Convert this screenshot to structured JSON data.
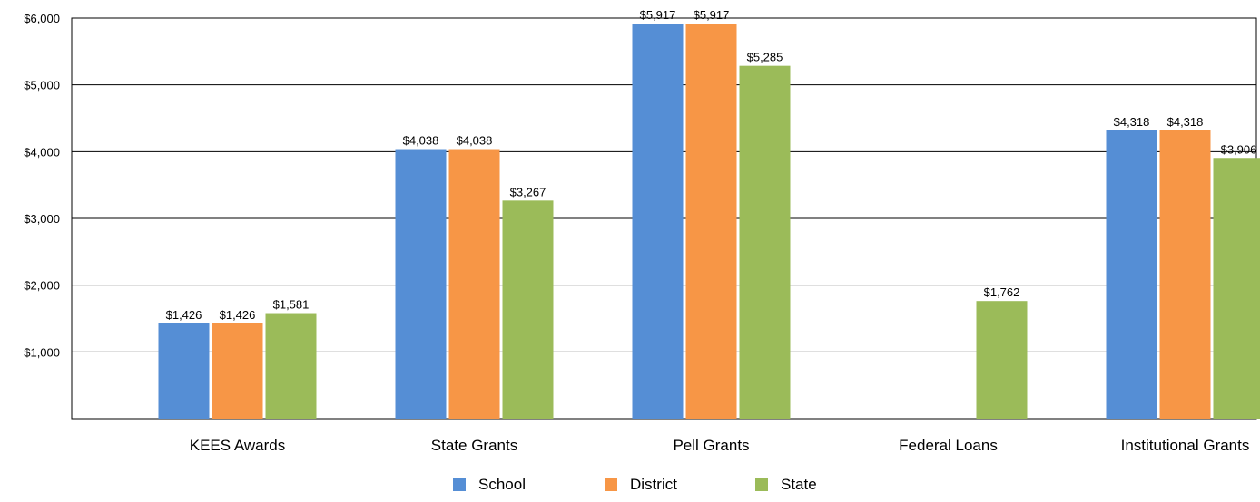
{
  "chart_data": {
    "type": "bar",
    "title": "",
    "xlabel": "",
    "ylabel": "",
    "categories": [
      "KEES Awards",
      "State Grants",
      "Pell Grants",
      "Federal Loans",
      "Institutional Grants"
    ],
    "series": [
      {
        "name": "School",
        "color": "#558ed5",
        "values": [
          1426,
          4038,
          5917,
          null,
          4318
        ],
        "labels": [
          "$1,426",
          "$4,038",
          "$5,917",
          "",
          "$4,318"
        ]
      },
      {
        "name": "District",
        "color": "#f79646",
        "values": [
          1426,
          4038,
          5917,
          null,
          4318
        ],
        "labels": [
          "$1,426",
          "$4,038",
          "$5,917",
          "",
          "$4,318"
        ]
      },
      {
        "name": "State",
        "color": "#9bbb59",
        "values": [
          1581,
          3267,
          5285,
          1762,
          3906
        ],
        "labels": [
          "$1,581",
          "$3,267",
          "$5,285",
          "$1,762",
          "$3,906"
        ]
      }
    ],
    "y_ticks": [
      1000,
      2000,
      3000,
      4000,
      5000,
      6000
    ],
    "y_tick_labels": [
      "$1,000",
      "$2,000",
      "$3,000",
      "$4,000",
      "$5,000",
      "$6,000"
    ],
    "ylim": [
      0,
      6000
    ],
    "grid": true,
    "legend_position": "bottom"
  }
}
